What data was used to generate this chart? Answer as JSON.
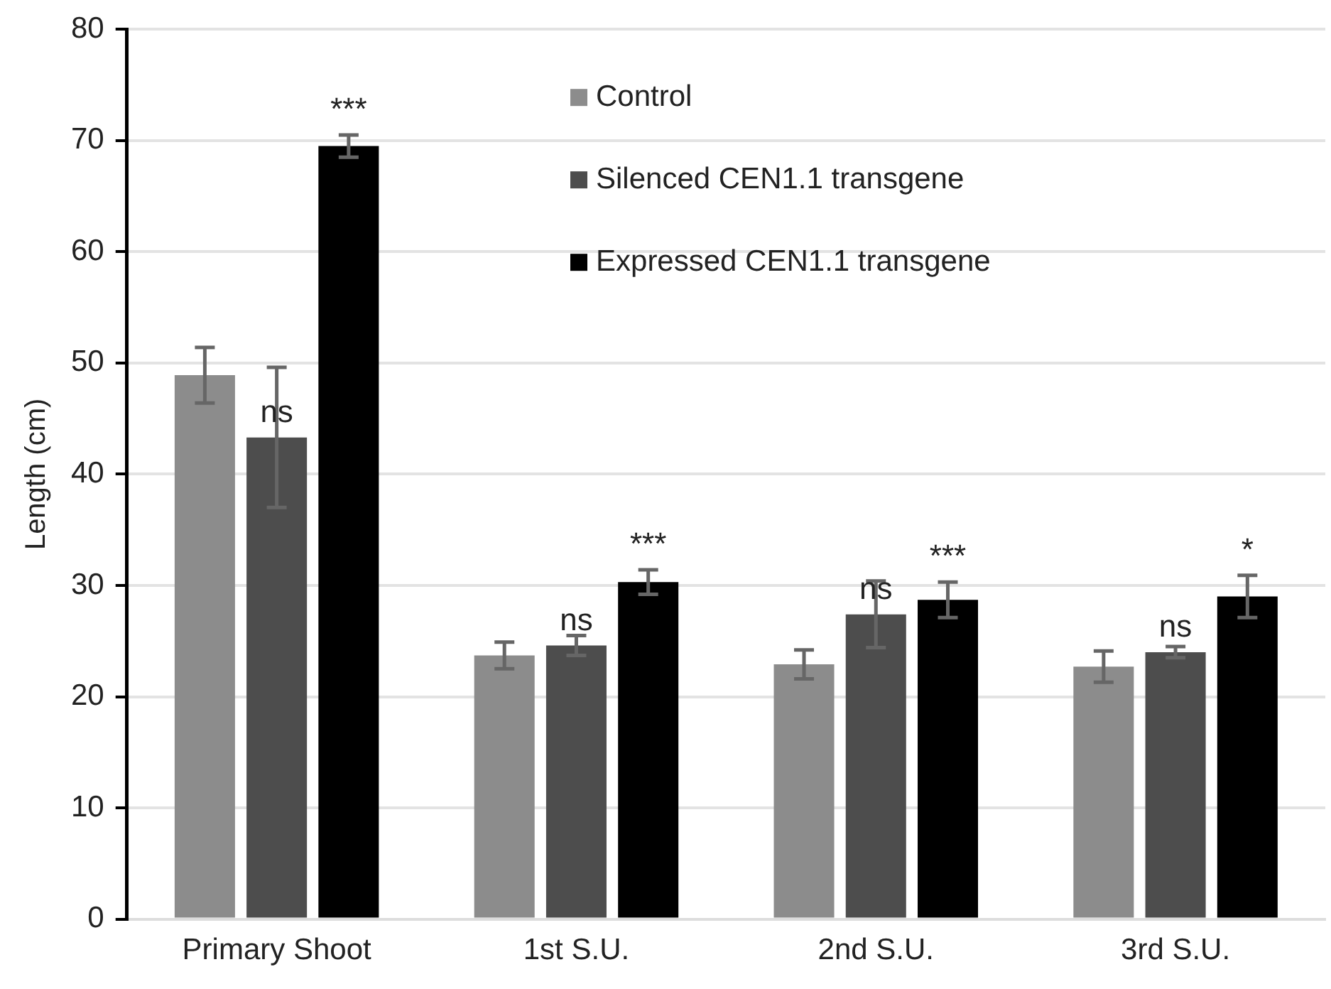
{
  "chart_data": {
    "type": "bar",
    "ylabel": "Length (cm)",
    "categories": [
      "Primary Shoot",
      "1st S.U.",
      "2nd S.U.",
      "3rd S.U."
    ],
    "series": [
      {
        "name": "Control",
        "color": "#8c8c8c",
        "values": [
          48.9,
          23.7,
          22.9,
          22.7
        ],
        "errors": [
          2.5,
          1.2,
          1.3,
          1.4
        ]
      },
      {
        "name": "Silenced CEN1.1 transgene",
        "color": "#4d4d4d",
        "values": [
          43.3,
          24.6,
          27.4,
          24.0
        ],
        "errors": [
          6.3,
          0.9,
          3.0,
          0.5
        ]
      },
      {
        "name": "Expressed CEN1.1 transgene",
        "color": "#000000",
        "values": [
          69.5,
          30.3,
          28.7,
          29.0
        ],
        "errors": [
          1.0,
          1.1,
          1.6,
          1.9
        ]
      }
    ],
    "ylim": [
      0,
      80
    ],
    "yticks": [
      0,
      10,
      20,
      30,
      40,
      50,
      60,
      70,
      80
    ],
    "grid": "y",
    "legend": "top right",
    "annotations": [
      {
        "text": "ns",
        "x": "Primary Shoot",
        "y": 43.3
      },
      {
        "text": "***",
        "y": 69.5
      },
      {
        "text": "ns",
        "x": "1st S.U.",
        "y": 24.6
      },
      {
        "text": "***",
        "y": 30.3
      },
      {
        "text": "ns",
        "x": "2nd S.U.",
        "y": 27.4
      },
      {
        "text": "***",
        "y": 28.7
      },
      {
        "text": "ns",
        "x": "3rd S.U.",
        "y": 24.0
      },
      {
        "text": "*",
        "y": 29.0
      }
    ]
  }
}
